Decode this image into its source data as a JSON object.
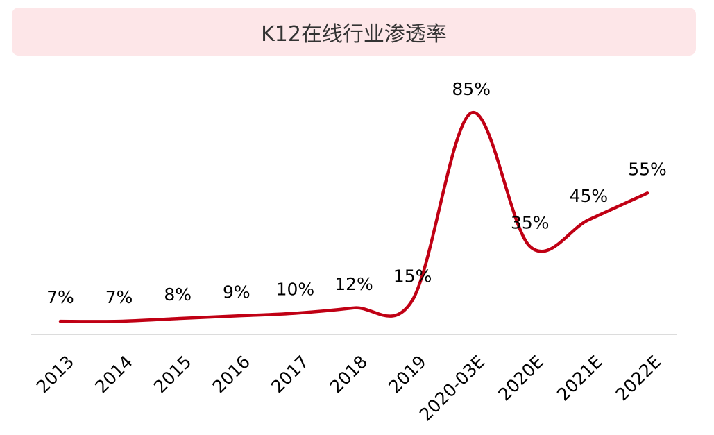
{
  "chart_data": {
    "type": "line",
    "title": "K12在线行业渗透率",
    "categories": [
      "2013",
      "2014",
      "2015",
      "2016",
      "2017",
      "2018",
      "2019",
      "2020-03E",
      "2020E",
      "2021E",
      "2022E"
    ],
    "values": [
      7,
      7,
      8,
      9,
      10,
      12,
      15,
      85,
      35,
      45,
      55
    ],
    "data_labels": [
      "7%",
      "7%",
      "8%",
      "9%",
      "10%",
      "12%",
      "15%",
      "85%",
      "35%",
      "45%",
      "55%"
    ],
    "ylim": [
      0,
      100
    ],
    "grid": false,
    "legend": "none",
    "line_color": "#c00014",
    "title_bg_color": "#fde6e8"
  }
}
